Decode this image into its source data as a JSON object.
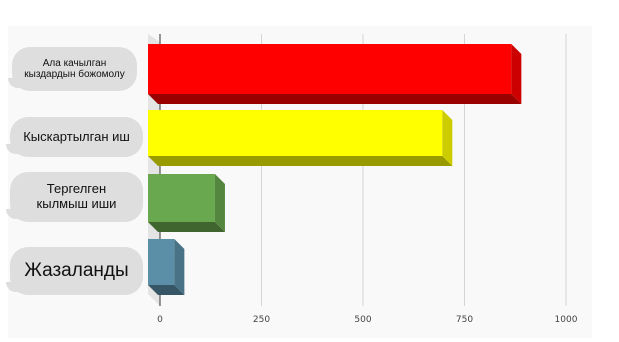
{
  "top_text": "",
  "chart_data": {
    "type": "bar",
    "orientation": "horizontal",
    "title": "",
    "xlabel": "",
    "ylabel": "",
    "categories": [
      "Ала качылган кыздардын божомолу",
      "Кыскартылган иш",
      "Тергелген кылмыш иши",
      "Жазаланды"
    ],
    "values": [
      890,
      720,
      160,
      60
    ],
    "colors": [
      "#ff0000",
      "#ffff00",
      "#6aa84f",
      "#5b8fa8"
    ],
    "xlim": [
      0,
      1000
    ],
    "ticks": [
      0,
      250,
      500,
      750,
      1000
    ],
    "tick_labels": [
      "0",
      "250",
      "500",
      "750",
      "1000"
    ],
    "grid": true,
    "legend": "none"
  }
}
